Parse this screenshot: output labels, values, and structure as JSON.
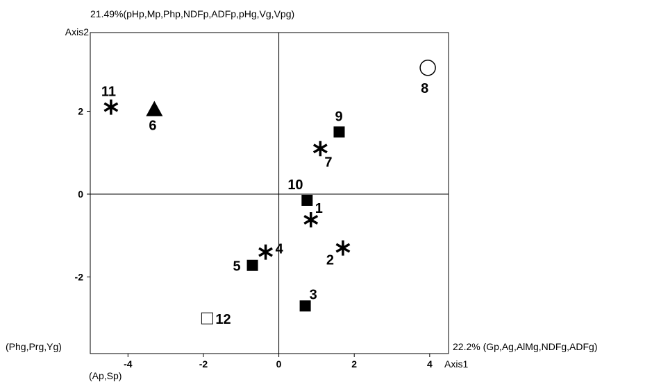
{
  "chart_data": {
    "type": "scatter",
    "title": "",
    "xlabel": "Axis1",
    "ylabel": "Axis2",
    "x_axis_note_right": "22.2% (Gp,Ag,AlMg,NDFg,ADFg)",
    "x_axis_note_left": "(Phg,Prg,Yg)",
    "y_axis_note_top": "21.49%(pHp,Mp,Php,NDFp,ADFp,pHg,Vg,Vpg)",
    "y_axis_note_bottom": "(Ap,Sp)",
    "xlim": [
      -5,
      4.5
    ],
    "ylim": [
      -3.85,
      3.9
    ],
    "xticks": [
      -4,
      -2,
      0,
      2,
      4
    ],
    "xtick_labels": [
      "-4",
      "-2",
      "0",
      "2",
      "4"
    ],
    "yticks": [
      2,
      0,
      -2
    ],
    "ytick_labels": [
      "2",
      "0",
      "-2"
    ],
    "grid": false,
    "legend": "none",
    "points": [
      {
        "label": "1",
        "x": 0.85,
        "y": -0.62,
        "marker": "asterisk"
      },
      {
        "label": "2",
        "x": 1.7,
        "y": -1.3,
        "marker": "asterisk"
      },
      {
        "label": "3",
        "x": 0.7,
        "y": -2.7,
        "marker": "square-filled"
      },
      {
        "label": "4",
        "x": -0.35,
        "y": -1.4,
        "marker": "asterisk"
      },
      {
        "label": "5",
        "x": -0.7,
        "y": -1.72,
        "marker": "square-filled"
      },
      {
        "label": "6",
        "x": -3.3,
        "y": 2.05,
        "marker": "triangle-filled"
      },
      {
        "label": "7",
        "x": 1.1,
        "y": 1.1,
        "marker": "asterisk"
      },
      {
        "label": "8",
        "x": 3.95,
        "y": 3.05,
        "marker": "circle-open"
      },
      {
        "label": "9",
        "x": 1.6,
        "y": 1.5,
        "marker": "square-filled"
      },
      {
        "label": "10",
        "x": 0.75,
        "y": -0.15,
        "marker": "square-filled"
      },
      {
        "label": "11",
        "x": -4.45,
        "y": 2.1,
        "marker": "asterisk"
      },
      {
        "label": "12",
        "x": -1.9,
        "y": -3.0,
        "marker": "square-open"
      }
    ]
  }
}
